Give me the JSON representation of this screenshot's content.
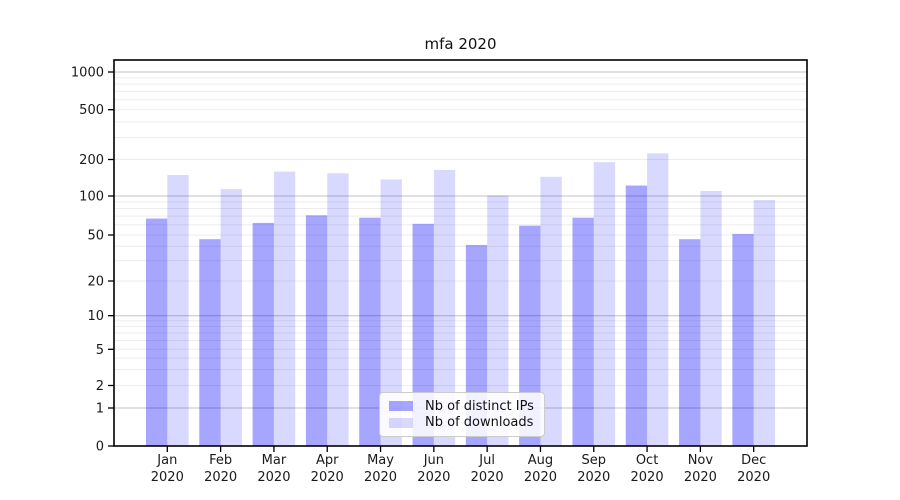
{
  "chart_data": {
    "type": "bar",
    "title": "mfa 2020",
    "year": "2020",
    "categories": [
      "Jan",
      "Feb",
      "Mar",
      "Apr",
      "May",
      "Jun",
      "Jul",
      "Aug",
      "Sep",
      "Oct",
      "Nov",
      "Dec"
    ],
    "x_tick_label_line2": "2020",
    "series": [
      {
        "name": "Nb of distinct IPs",
        "color": "rgba(0,0,255,0.35)",
        "values": [
          67,
          46,
          62,
          71,
          68,
          61,
          41,
          59,
          68,
          122,
          46,
          51
        ]
      },
      {
        "name": "Nb of downloads",
        "color": "rgba(0,0,255,0.15)",
        "values": [
          149,
          114,
          159,
          154,
          137,
          164,
          101,
          144,
          190,
          224,
          110,
          93
        ]
      }
    ],
    "yscale": "symlog",
    "yticks": [
      0,
      1,
      2,
      5,
      10,
      20,
      50,
      100,
      200,
      500,
      1000
    ],
    "ylim": [
      0,
      1250
    ],
    "xlabel": "",
    "ylabel": "",
    "grid": {
      "major": true,
      "minor": true
    },
    "legend_position": "lower center"
  },
  "colors": {
    "bar_distinct_ips": "rgba(0,0,255,0.35)",
    "bar_downloads": "rgba(0,0,255,0.15)",
    "grid_major": "#c3c3c3",
    "grid_minor": "#ededed",
    "axis": "#000000",
    "text": "#1a1a1a",
    "legend_border": "#cccccc",
    "legend_bg": "rgba(255,255,255,0.85)"
  }
}
